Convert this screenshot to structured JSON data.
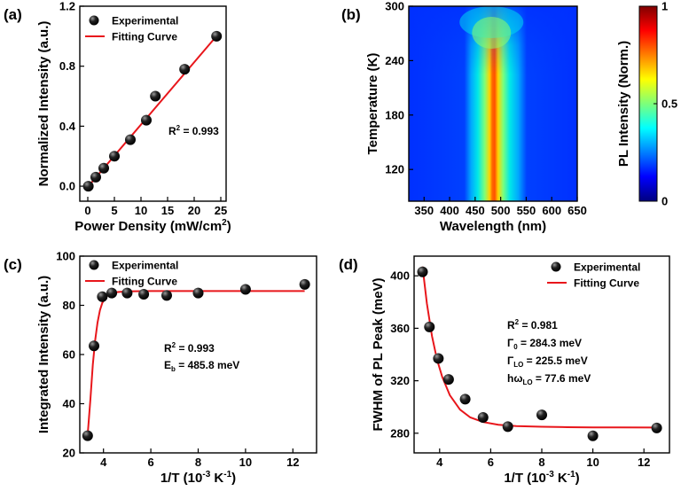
{
  "chart_data": [
    {
      "panel": "(a)",
      "type": "scatter",
      "xlabel": "Power Density (mW/cm",
      "xlabel_sup": "2",
      "xlabel_end": ")",
      "ylabel": "Normalized Intensity (a.u.)",
      "xlim": [
        -1.5,
        26
      ],
      "ylim": [
        -0.1,
        1.2
      ],
      "xticks": [
        0,
        5,
        10,
        15,
        20,
        25
      ],
      "yticks": [
        0.0,
        0.4,
        0.8,
        1.2
      ],
      "ytick_labels": [
        "0.0",
        "0.4",
        "0.8",
        "1.2"
      ],
      "legend": [
        "Experimental",
        "Fitting Curve"
      ],
      "annotation": {
        "text": "R",
        "sup": "2",
        "rest": " = 0.993"
      },
      "series": [
        {
          "name": "Experimental",
          "x": [
            0.1,
            1.5,
            3.0,
            5.0,
            8.0,
            11.0,
            12.7,
            18.2,
            24.2
          ],
          "y": [
            0.0,
            0.06,
            0.12,
            0.2,
            0.31,
            0.44,
            0.6,
            0.78,
            1.0
          ]
        },
        {
          "name": "Fitting Curve",
          "x": [
            0,
            24.3
          ],
          "y": [
            -0.005,
            1.005
          ]
        }
      ]
    },
    {
      "panel": "(b)",
      "type": "heatmap",
      "xlabel": "Wavelength (nm)",
      "ylabel": "Temperature (K)",
      "colorbar_label": "PL Intensity (Norm.)",
      "xlim": [
        320,
        650
      ],
      "ylim": [
        85,
        300
      ],
      "xticks": [
        350,
        400,
        450,
        500,
        550,
        600,
        650
      ],
      "yticks": [
        120,
        180,
        240,
        300
      ],
      "colorbar_ticks": [
        0,
        0.5,
        1
      ],
      "colorbar_tick_labels": [
        "0",
        "0.5",
        "1"
      ],
      "peak_wavelength_nm": 482,
      "colors": [
        "#00007f",
        "#0028ff",
        "#00d4ff",
        "#7dff7a",
        "#ffe500",
        "#ff4800",
        "#7f0000"
      ]
    },
    {
      "panel": "(c)",
      "type": "scatter",
      "xlabel": "1/T (10",
      "xlabel_sup": "-3",
      "xlabel_end": " K",
      "xlabel_sup2": "-1",
      "xlabel_close": ")",
      "ylabel": "Integrated Intensity (a.u.)",
      "xlim": [
        3,
        13
      ],
      "ylim": [
        20,
        100
      ],
      "xticks": [
        4,
        6,
        8,
        10,
        12
      ],
      "yticks": [
        20,
        40,
        60,
        80,
        100
      ],
      "legend": [
        "Experimental",
        "Fitting Curve"
      ],
      "annotation_lines": [
        {
          "text": "R",
          "sup": "2",
          "rest": " = 0.993"
        },
        {
          "text": "E",
          "sub": "b",
          "rest": " = 485.8 meV"
        }
      ],
      "series": [
        {
          "name": "Experimental",
          "x": [
            3.33,
            3.6,
            3.95,
            4.35,
            5.0,
            5.7,
            6.67,
            8.0,
            10.0,
            12.5
          ],
          "y": [
            27,
            63.5,
            83.5,
            85,
            85,
            84.5,
            84,
            85,
            86.5,
            88.5
          ]
        },
        {
          "name": "Fitting Curve",
          "x": [
            3.33,
            3.45,
            3.55,
            3.65,
            3.75,
            3.85,
            3.95,
            4.1,
            4.3,
            4.6,
            5.0,
            6.0,
            8.0,
            10.0,
            12.5
          ],
          "y": [
            27,
            42,
            56,
            66,
            73,
            78,
            81,
            83.5,
            84.8,
            85.4,
            85.7,
            85.8,
            85.8,
            85.8,
            85.8
          ]
        }
      ]
    },
    {
      "panel": "(d)",
      "type": "scatter",
      "xlabel": "1/T (10",
      "xlabel_sup": "-3",
      "xlabel_end": " K",
      "xlabel_sup2": "-1",
      "xlabel_close": ")",
      "ylabel": "FWHM of PL Peak (meV)",
      "xlim": [
        3,
        13
      ],
      "ylim": [
        265,
        415
      ],
      "xticks": [
        4,
        6,
        8,
        10,
        12
      ],
      "yticks": [
        280,
        320,
        360,
        400
      ],
      "legend": [
        "Experimental",
        "Fitting Curve"
      ],
      "annotation_lines": [
        {
          "text": "R",
          "sup": "2",
          "rest": " = 0.981"
        },
        {
          "text": "Γ",
          "sub": "0",
          "rest": " = 284.3 meV"
        },
        {
          "text": "Γ",
          "sub": "LO",
          "rest": " = 225.5 meV"
        },
        {
          "text": "hω",
          "sub": "LO",
          "rest": " = 77.6 meV"
        }
      ],
      "series": [
        {
          "name": "Experimental",
          "x": [
            3.33,
            3.6,
            3.95,
            4.35,
            5.0,
            5.7,
            6.67,
            8.0,
            10.0,
            12.5
          ],
          "y": [
            403,
            361,
            337,
            321,
            306,
            292,
            285,
            294,
            278,
            284
          ]
        },
        {
          "name": "Fitting Curve",
          "x": [
            3.33,
            3.5,
            3.7,
            3.9,
            4.1,
            4.4,
            4.8,
            5.2,
            5.7,
            6.3,
            7.0,
            8.0,
            9.0,
            10.0,
            11.0,
            12.5
          ],
          "y": [
            407,
            379,
            354,
            336,
            323,
            309,
            298,
            292,
            288.5,
            286.5,
            285.5,
            284.9,
            284.6,
            284.4,
            284.4,
            284.3
          ]
        }
      ]
    }
  ]
}
